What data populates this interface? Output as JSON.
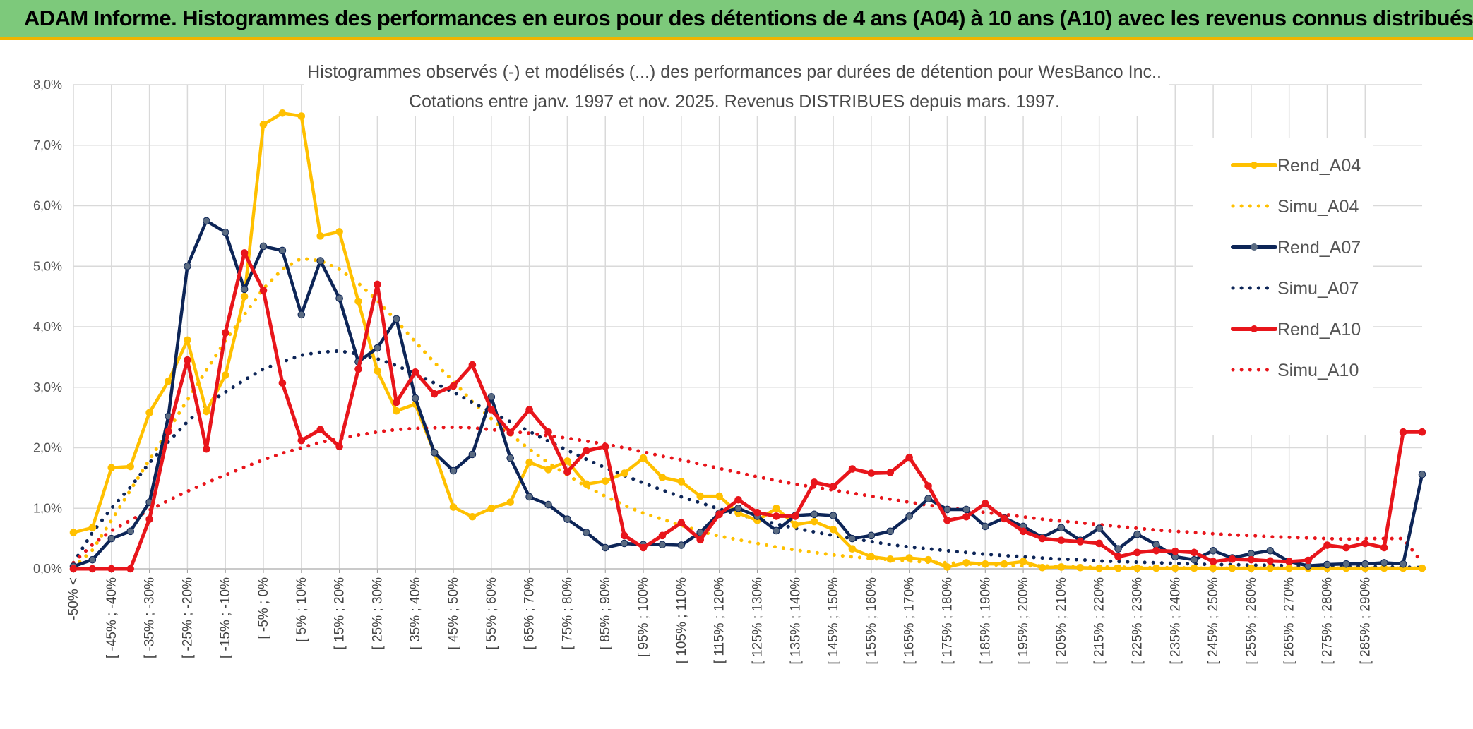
{
  "banner": {
    "title": "ADAM Informe. Histogrammes des performances en euros pour des détentions de 4 ans (A04) à 10 ans (A10) avec les revenus connus distribués"
  },
  "colors": {
    "banner_bg": "#7dc97b",
    "banner_border": "#f0b400",
    "grid": "#d9d9d9"
  },
  "chart_data": {
    "type": "line",
    "title_lines": [
      "Histogrammes observés (-) et modélisés (...) des performances par durées de détention pour WesBanco Inc..",
      "Cotations entre janv. 1997 et nov. 2025. Revenus DISTRIBUES depuis mars. 1997."
    ],
    "y_ticks": [
      "0,0%",
      "1,0%",
      "2,0%",
      "3,0%",
      "4,0%",
      "5,0%",
      "6,0%",
      "7,0%",
      "8,0%"
    ],
    "ylim": [
      0,
      8
    ],
    "grid": true,
    "legend_position": "right",
    "categories": [
      "-50% <",
      "[ -50% ; -45%",
      "[ -45% ; -40%",
      "[ -40% ; -35%",
      "[ -35% ; -30%",
      "[ -30% ; -25%",
      "[ -25% ; -20%",
      "[ -20% ; -15%",
      "[ -15% ; -10%",
      "[ -10% ; -5%",
      "[ -5% ; 0%",
      "[ 0% ; 5%",
      "[ 5% ; 10%",
      "[ 10% ; 15%",
      "[ 15% ; 20%",
      "[ 20% ; 25%",
      "[ 25% ; 30%",
      "[ 30% ; 35%",
      "[ 35% ; 40%",
      "[ 40% ; 45%",
      "[ 45% ; 50%",
      "[ 50% ; 55%",
      "[ 55% ; 60%",
      "[ 60% ; 65%",
      "[ 65% ; 70%",
      "[ 70% ; 75%",
      "[ 75% ; 80%",
      "[ 80% ; 85%",
      "[ 85% ; 90%",
      "[ 90% ; 95%",
      "[ 95% ; 100%",
      "[ 100% ; 105%",
      "[ 105% ; 110%",
      "[ 110% ; 115%",
      "[ 115% ; 120%",
      "[ 120% ; 125%",
      "[ 125% ; 130%",
      "[ 130% ; 135%",
      "[ 135% ; 140%",
      "[ 140% ; 145%",
      "[ 145% ; 150%",
      "[ 150% ; 155%",
      "[ 155% ; 160%",
      "[ 160% ; 165%",
      "[ 165% ; 170%",
      "[ 170% ; 175%",
      "[ 175% ; 180%",
      "[ 180% ; 185%",
      "[ 185% ; 190%",
      "[ 190% ; 195%",
      "[ 195% ; 200%",
      "[ 200% ; 205%",
      "[ 205% ; 210%",
      "[ 210% ; 215%",
      "[ 215% ; 220%",
      "[ 220% ; 225%",
      "[ 225% ; 230%",
      "[ 230% ; 235%",
      "[ 235% ; 240%",
      "[ 240% ; 245%",
      "[ 245% ; 250%",
      "[ 250% ; 255%",
      "[ 255% ; 260%",
      "[ 260% ; 265%",
      "[ 265% ; 270%",
      "[ 270% ; 275%",
      "[ 275% ; 280%",
      "[ 280% ; 285%",
      "[ 285% ; 290%",
      "[ 290% ; 295%",
      "[ 295% ; 300%",
      "> 300%"
    ],
    "x_labels_shown": [
      "-50% <",
      "[ -45% ; -40%",
      "[ -35% ; -30%",
      "[ -25% ; -20%",
      "[ -15% ; -10%",
      "[ -5% ; 0%",
      "[ 5% ; 10%",
      "[ 15% ; 20%",
      "[ 25% ; 30%",
      "[ 35% ; 40%",
      "[ 45% ; 50%",
      "[ 55% ; 60%",
      "[ 65% ; 70%",
      "[ 75% ; 80%",
      "[ 85% ; 90%",
      "[ 95% ; 100%",
      "[ 105% ; 110%",
      "[ 115% ; 120%",
      "[ 125% ; 130%",
      "[ 135% ; 140%",
      "[ 145% ; 150%",
      "[ 155% ; 160%",
      "[ 165% ; 170%",
      "[ 175% ; 180%",
      "[ 185% ; 190%",
      "[ 195% ; 200%",
      "[ 205% ; 210%",
      "[ 215% ; 220%",
      "[ 225% ; 230%",
      "[ 235% ; 240%",
      "[ 245% ; 250%",
      "[ 255% ; 260%",
      "[ 265% ; 270%",
      "[ 275% ; 280%",
      "[ 285% ; 290%"
    ],
    "series": [
      {
        "name": "Rend_A04",
        "color": "#FFC000",
        "style": "solid",
        "markers": true,
        "values": [
          0.6,
          0.68,
          1.67,
          1.69,
          2.58,
          3.1,
          3.78,
          2.6,
          3.2,
          4.5,
          7.34,
          7.53,
          7.48,
          5.5,
          5.57,
          4.42,
          3.27,
          2.61,
          2.72,
          1.92,
          1.02,
          0.86,
          1.0,
          1.1,
          1.76,
          1.64,
          1.78,
          1.4,
          1.45,
          1.58,
          1.83,
          1.51,
          1.44,
          1.2,
          1.2,
          0.92,
          0.8,
          1.0,
          0.73,
          0.78,
          0.65,
          0.33,
          0.2,
          0.16,
          0.18,
          0.15,
          0.03,
          0.1,
          0.08,
          0.08,
          0.12,
          0.02,
          0.03,
          0.02,
          0.01,
          0.01,
          0.01,
          0.01,
          0.01,
          0.01,
          0.01,
          0.01,
          0.01,
          0.01,
          0.01,
          0.01,
          0.01,
          0.01,
          0.01,
          0.01,
          0.01,
          0.01
        ]
      },
      {
        "name": "Simu_A04",
        "color": "#FFC000",
        "style": "dotted",
        "markers": false,
        "values": [
          0.02,
          0.31,
          0.8,
          1.3,
          1.8,
          2.29,
          2.79,
          3.28,
          3.77,
          4.2,
          4.63,
          4.95,
          5.13,
          5.09,
          4.95,
          4.72,
          4.43,
          4.1,
          3.75,
          3.41,
          3.1,
          2.76,
          2.48,
          2.22,
          1.98,
          1.75,
          1.55,
          1.36,
          1.2,
          1.05,
          0.92,
          0.82,
          0.72,
          0.62,
          0.54,
          0.48,
          0.42,
          0.36,
          0.31,
          0.27,
          0.23,
          0.2,
          0.17,
          0.15,
          0.13,
          0.11,
          0.1,
          0.08,
          0.07,
          0.06,
          0.05,
          0.05,
          0.04,
          0.03,
          0.03,
          0.03,
          0.02,
          0.02,
          0.02,
          0.01,
          0.01,
          0.01,
          0.01,
          0.01,
          0.01,
          0.01,
          0.01,
          0.01,
          0.01,
          0.01,
          0.01,
          0.01
        ]
      },
      {
        "name": "Rend_A07",
        "color": "#0D2557",
        "style": "solid",
        "markers": true,
        "values": [
          0.04,
          0.15,
          0.5,
          0.62,
          1.1,
          2.52,
          5.0,
          5.75,
          5.56,
          4.62,
          5.33,
          5.26,
          4.2,
          5.09,
          4.47,
          3.42,
          3.65,
          4.13,
          2.82,
          1.92,
          1.62,
          1.89,
          2.84,
          1.83,
          1.19,
          1.06,
          0.82,
          0.6,
          0.35,
          0.42,
          0.4,
          0.4,
          0.39,
          0.6,
          0.92,
          1.0,
          0.87,
          0.63,
          0.88,
          0.9,
          0.88,
          0.5,
          0.55,
          0.62,
          0.87,
          1.16,
          0.98,
          0.98,
          0.7,
          0.84,
          0.7,
          0.52,
          0.68,
          0.47,
          0.67,
          0.33,
          0.57,
          0.4,
          0.2,
          0.15,
          0.3,
          0.18,
          0.25,
          0.3,
          0.12,
          0.05,
          0.07,
          0.08,
          0.08,
          0.1,
          0.08,
          1.56
        ]
      },
      {
        "name": "Simu_A07",
        "color": "#0D2557",
        "style": "dotted",
        "markers": false,
        "values": [
          0.1,
          0.6,
          1.0,
          1.35,
          1.75,
          2.1,
          2.43,
          2.71,
          2.92,
          3.12,
          3.3,
          3.42,
          3.53,
          3.58,
          3.6,
          3.55,
          3.47,
          3.36,
          3.22,
          3.07,
          2.92,
          2.75,
          2.59,
          2.43,
          2.27,
          2.11,
          1.96,
          1.81,
          1.67,
          1.54,
          1.42,
          1.3,
          1.19,
          1.09,
          0.99,
          0.9,
          0.82,
          0.74,
          0.67,
          0.61,
          0.55,
          0.5,
          0.45,
          0.4,
          0.36,
          0.33,
          0.3,
          0.27,
          0.24,
          0.22,
          0.2,
          0.18,
          0.16,
          0.15,
          0.13,
          0.12,
          0.11,
          0.1,
          0.09,
          0.08,
          0.07,
          0.07,
          0.06,
          0.06,
          0.05,
          0.05,
          0.04,
          0.04,
          0.04,
          0.03,
          0.03,
          0.02
        ]
      },
      {
        "name": "Rend_A10",
        "color": "#E8151B",
        "style": "solid",
        "markers": true,
        "values": [
          0.0,
          0.0,
          0.0,
          0.0,
          0.82,
          2.27,
          3.45,
          1.98,
          3.9,
          5.22,
          4.6,
          3.07,
          2.12,
          2.3,
          2.02,
          3.3,
          4.7,
          2.75,
          3.25,
          2.89,
          3.02,
          3.37,
          2.63,
          2.25,
          2.63,
          2.26,
          1.6,
          1.95,
          2.02,
          0.55,
          0.35,
          0.55,
          0.76,
          0.48,
          0.9,
          1.14,
          0.93,
          0.87,
          0.87,
          1.43,
          1.36,
          1.65,
          1.58,
          1.59,
          1.84,
          1.37,
          0.8,
          0.86,
          1.08,
          0.83,
          0.62,
          0.5,
          0.47,
          0.45,
          0.42,
          0.2,
          0.27,
          0.3,
          0.29,
          0.27,
          0.12,
          0.16,
          0.15,
          0.13,
          0.12,
          0.14,
          0.39,
          0.35,
          0.42,
          0.35,
          2.26,
          2.26
        ]
      },
      {
        "name": "Simu_A10",
        "color": "#E8151B",
        "style": "dotted",
        "markers": false,
        "values": [
          0.1,
          0.4,
          0.63,
          0.8,
          0.97,
          1.13,
          1.28,
          1.42,
          1.55,
          1.68,
          1.8,
          1.91,
          2.0,
          2.09,
          2.15,
          2.21,
          2.26,
          2.3,
          2.32,
          2.33,
          2.34,
          2.33,
          2.3,
          2.27,
          2.24,
          2.2,
          2.16,
          2.11,
          2.06,
          2.0,
          1.93,
          1.86,
          1.8,
          1.73,
          1.66,
          1.59,
          1.52,
          1.46,
          1.4,
          1.35,
          1.3,
          1.25,
          1.2,
          1.15,
          1.1,
          1.05,
          1.01,
          0.97,
          0.93,
          0.9,
          0.86,
          0.82,
          0.79,
          0.76,
          0.73,
          0.7,
          0.67,
          0.64,
          0.62,
          0.6,
          0.58,
          0.56,
          0.55,
          0.53,
          0.52,
          0.51,
          0.5,
          0.49,
          0.5,
          0.5,
          0.5,
          0.1
        ]
      }
    ]
  }
}
